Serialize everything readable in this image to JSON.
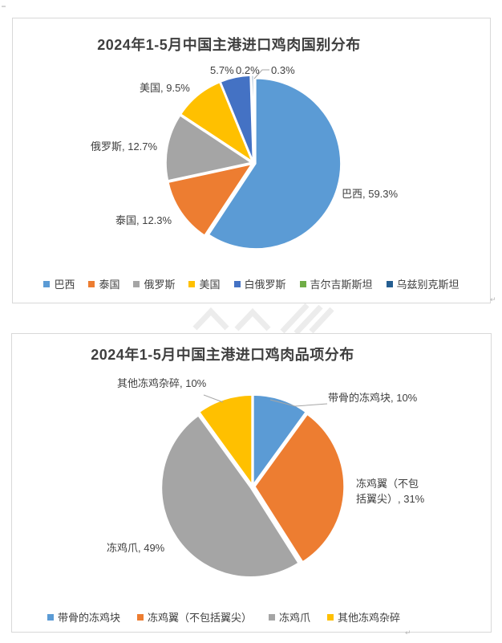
{
  "page": {
    "background": "#ffffff",
    "panel_border_color": "#d8d8d8",
    "return_mark_glyph": "↵"
  },
  "chart_data": [
    {
      "type": "pie",
      "title": "2024年1-5月中国主港进口鸡肉国别分布",
      "categories": [
        "巴西",
        "泰国",
        "俄罗斯",
        "美国",
        "白俄罗斯",
        "吉尔吉斯斯坦",
        "乌兹别克斯坦"
      ],
      "values": [
        59.3,
        12.3,
        12.7,
        9.5,
        5.7,
        0.2,
        0.3
      ],
      "unit": "%",
      "colors": [
        "#5B9BD5",
        "#ED7D31",
        "#A5A5A5",
        "#FFC000",
        "#4472C4",
        "#70AD47",
        "#255E91"
      ],
      "start_angle_deg": 0,
      "direction": "clockwise",
      "legend_position": "bottom",
      "data_labels": [
        "巴西, 59.3%",
        "泰国, 12.3%",
        "俄罗斯, 12.7%",
        "美国, 9.5%",
        "5.7%",
        "0.2%",
        "0.3%"
      ]
    },
    {
      "type": "pie",
      "title": "2024年1-5月中国主港进口鸡肉品项分布",
      "categories": [
        "带骨的冻鸡块",
        "冻鸡翼（不包括翼尖）",
        "冻鸡爪",
        "其他冻鸡杂碎"
      ],
      "values": [
        10,
        31,
        49,
        10
      ],
      "unit": "%",
      "colors": [
        "#5B9BD5",
        "#ED7D31",
        "#A5A5A5",
        "#FFC000"
      ],
      "start_angle_deg": 0,
      "direction": "clockwise",
      "legend_position": "bottom",
      "data_labels": [
        "带骨的冻鸡块, 10%",
        "冻鸡翼（不包括翼尖）, 31%",
        "冻鸡爪, 49%",
        "其他冻鸡杂碎, 10%"
      ]
    }
  ],
  "pie1_labels": {
    "brazil": "巴西, 59.3%",
    "thailand": "泰国, 12.3%",
    "russia": "俄罗斯, 12.7%",
    "usa": "美国, 9.5%",
    "belarus_pct": "5.7%",
    "kyrgyzstan_pct": "0.2%",
    "uzbekistan_pct": "0.3%"
  },
  "pie2_labels": {
    "bone_in_chicken": "带骨的冻鸡块, 10%",
    "wings": "冻鸡翼（不包括翼尖）, 31%",
    "feet": "冻鸡爪, 49%",
    "other_offal": "其他冻鸡杂碎, 10%"
  }
}
